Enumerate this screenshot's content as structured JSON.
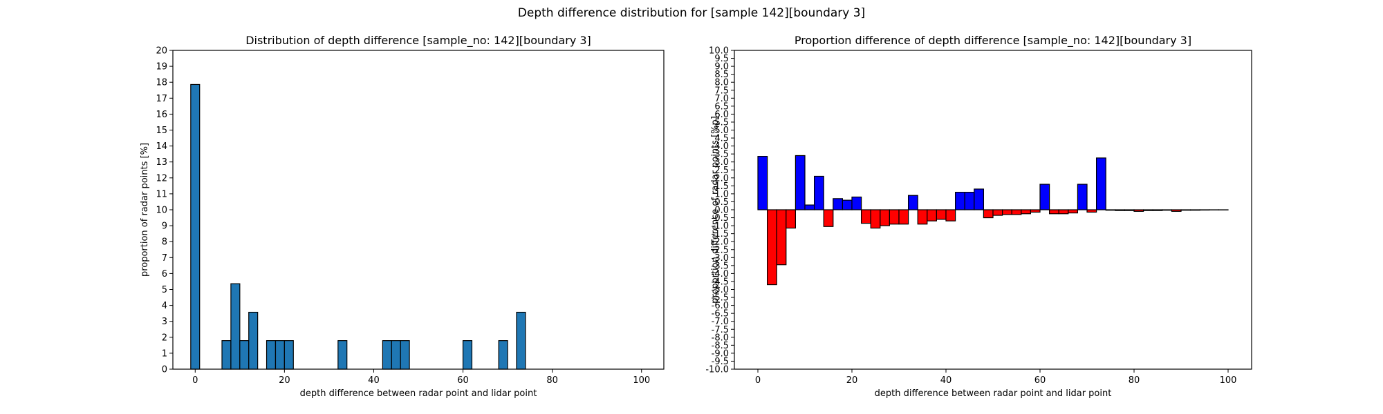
{
  "figure": {
    "title": "Depth difference distribution for [sample 142][boundary 3]"
  },
  "chart_data": [
    {
      "type": "bar",
      "title": "Distribution of depth difference [sample_no: 142][boundary 3]",
      "xlabel": "depth difference between radar point and lidar point",
      "ylabel": "proportion of radar points [%]",
      "xlim": [
        -5,
        105
      ],
      "ylim": [
        0,
        20
      ],
      "xticks": [
        0,
        20,
        40,
        60,
        80,
        100
      ],
      "yticks": [
        0,
        1,
        2,
        3,
        4,
        5,
        6,
        7,
        8,
        9,
        10,
        11,
        12,
        13,
        14,
        15,
        16,
        17,
        18,
        19,
        20
      ],
      "bin_width": 2,
      "bar_color": "#1f77b4",
      "edge_color": "#000000",
      "x": [
        0,
        7,
        9,
        11,
        13,
        17,
        19,
        21,
        33,
        43,
        45,
        47,
        61,
        69,
        73
      ],
      "values": [
        17.86,
        1.79,
        5.36,
        1.79,
        3.57,
        1.79,
        1.79,
        1.79,
        1.79,
        1.79,
        1.79,
        1.79,
        1.79,
        1.79,
        3.57
      ]
    },
    {
      "type": "bar",
      "title": "Proportion difference of depth difference [sample_no: 142][boundary 3]",
      "xlabel": "depth difference between radar point and lidar point",
      "ylabel": "proportion difference of radar points [%p]",
      "xlim": [
        -5,
        105
      ],
      "ylim": [
        -10,
        10
      ],
      "xticks": [
        0,
        20,
        40,
        60,
        80,
        100
      ],
      "yticks": [
        -10.0,
        -9.5,
        -9.0,
        -8.5,
        -8.0,
        -7.5,
        -7.0,
        -6.5,
        -6.0,
        -5.5,
        -5.0,
        -4.5,
        -4.0,
        -3.5,
        -3.0,
        -2.5,
        -2.0,
        -1.5,
        -1.0,
        -0.5,
        0.0,
        0.5,
        1.0,
        1.5,
        2.0,
        2.5,
        3.0,
        3.5,
        4.0,
        4.5,
        5.0,
        5.5,
        6.0,
        6.5,
        7.0,
        7.5,
        8.0,
        8.5,
        9.0,
        9.5,
        10.0
      ],
      "bin_width": 2,
      "positive_color": "#0000ff",
      "negative_color": "#ff0000",
      "edge_color": "#000000",
      "x": [
        1,
        3,
        5,
        7,
        9,
        11,
        13,
        15,
        17,
        19,
        21,
        23,
        25,
        27,
        29,
        31,
        33,
        35,
        37,
        39,
        41,
        43,
        45,
        47,
        49,
        51,
        53,
        55,
        57,
        59,
        61,
        63,
        65,
        67,
        69,
        71,
        73,
        75,
        77,
        79,
        81,
        83,
        85,
        87,
        89,
        91,
        93,
        95,
        97,
        99
      ],
      "values": [
        3.35,
        -4.7,
        -3.45,
        -1.15,
        3.4,
        0.3,
        2.1,
        -1.05,
        0.7,
        0.6,
        0.8,
        -0.85,
        -1.15,
        -1.0,
        -0.9,
        -0.9,
        0.9,
        -0.9,
        -0.7,
        -0.6,
        -0.7,
        1.1,
        1.1,
        1.3,
        -0.5,
        -0.35,
        -0.3,
        -0.3,
        -0.25,
        -0.15,
        1.6,
        -0.25,
        -0.25,
        -0.2,
        1.6,
        -0.15,
        3.25,
        -0.03,
        -0.05,
        -0.05,
        -0.1,
        -0.05,
        -0.05,
        -0.03,
        -0.1,
        -0.03,
        -0.03,
        -0.02,
        -0.01,
        -0.01
      ]
    }
  ]
}
